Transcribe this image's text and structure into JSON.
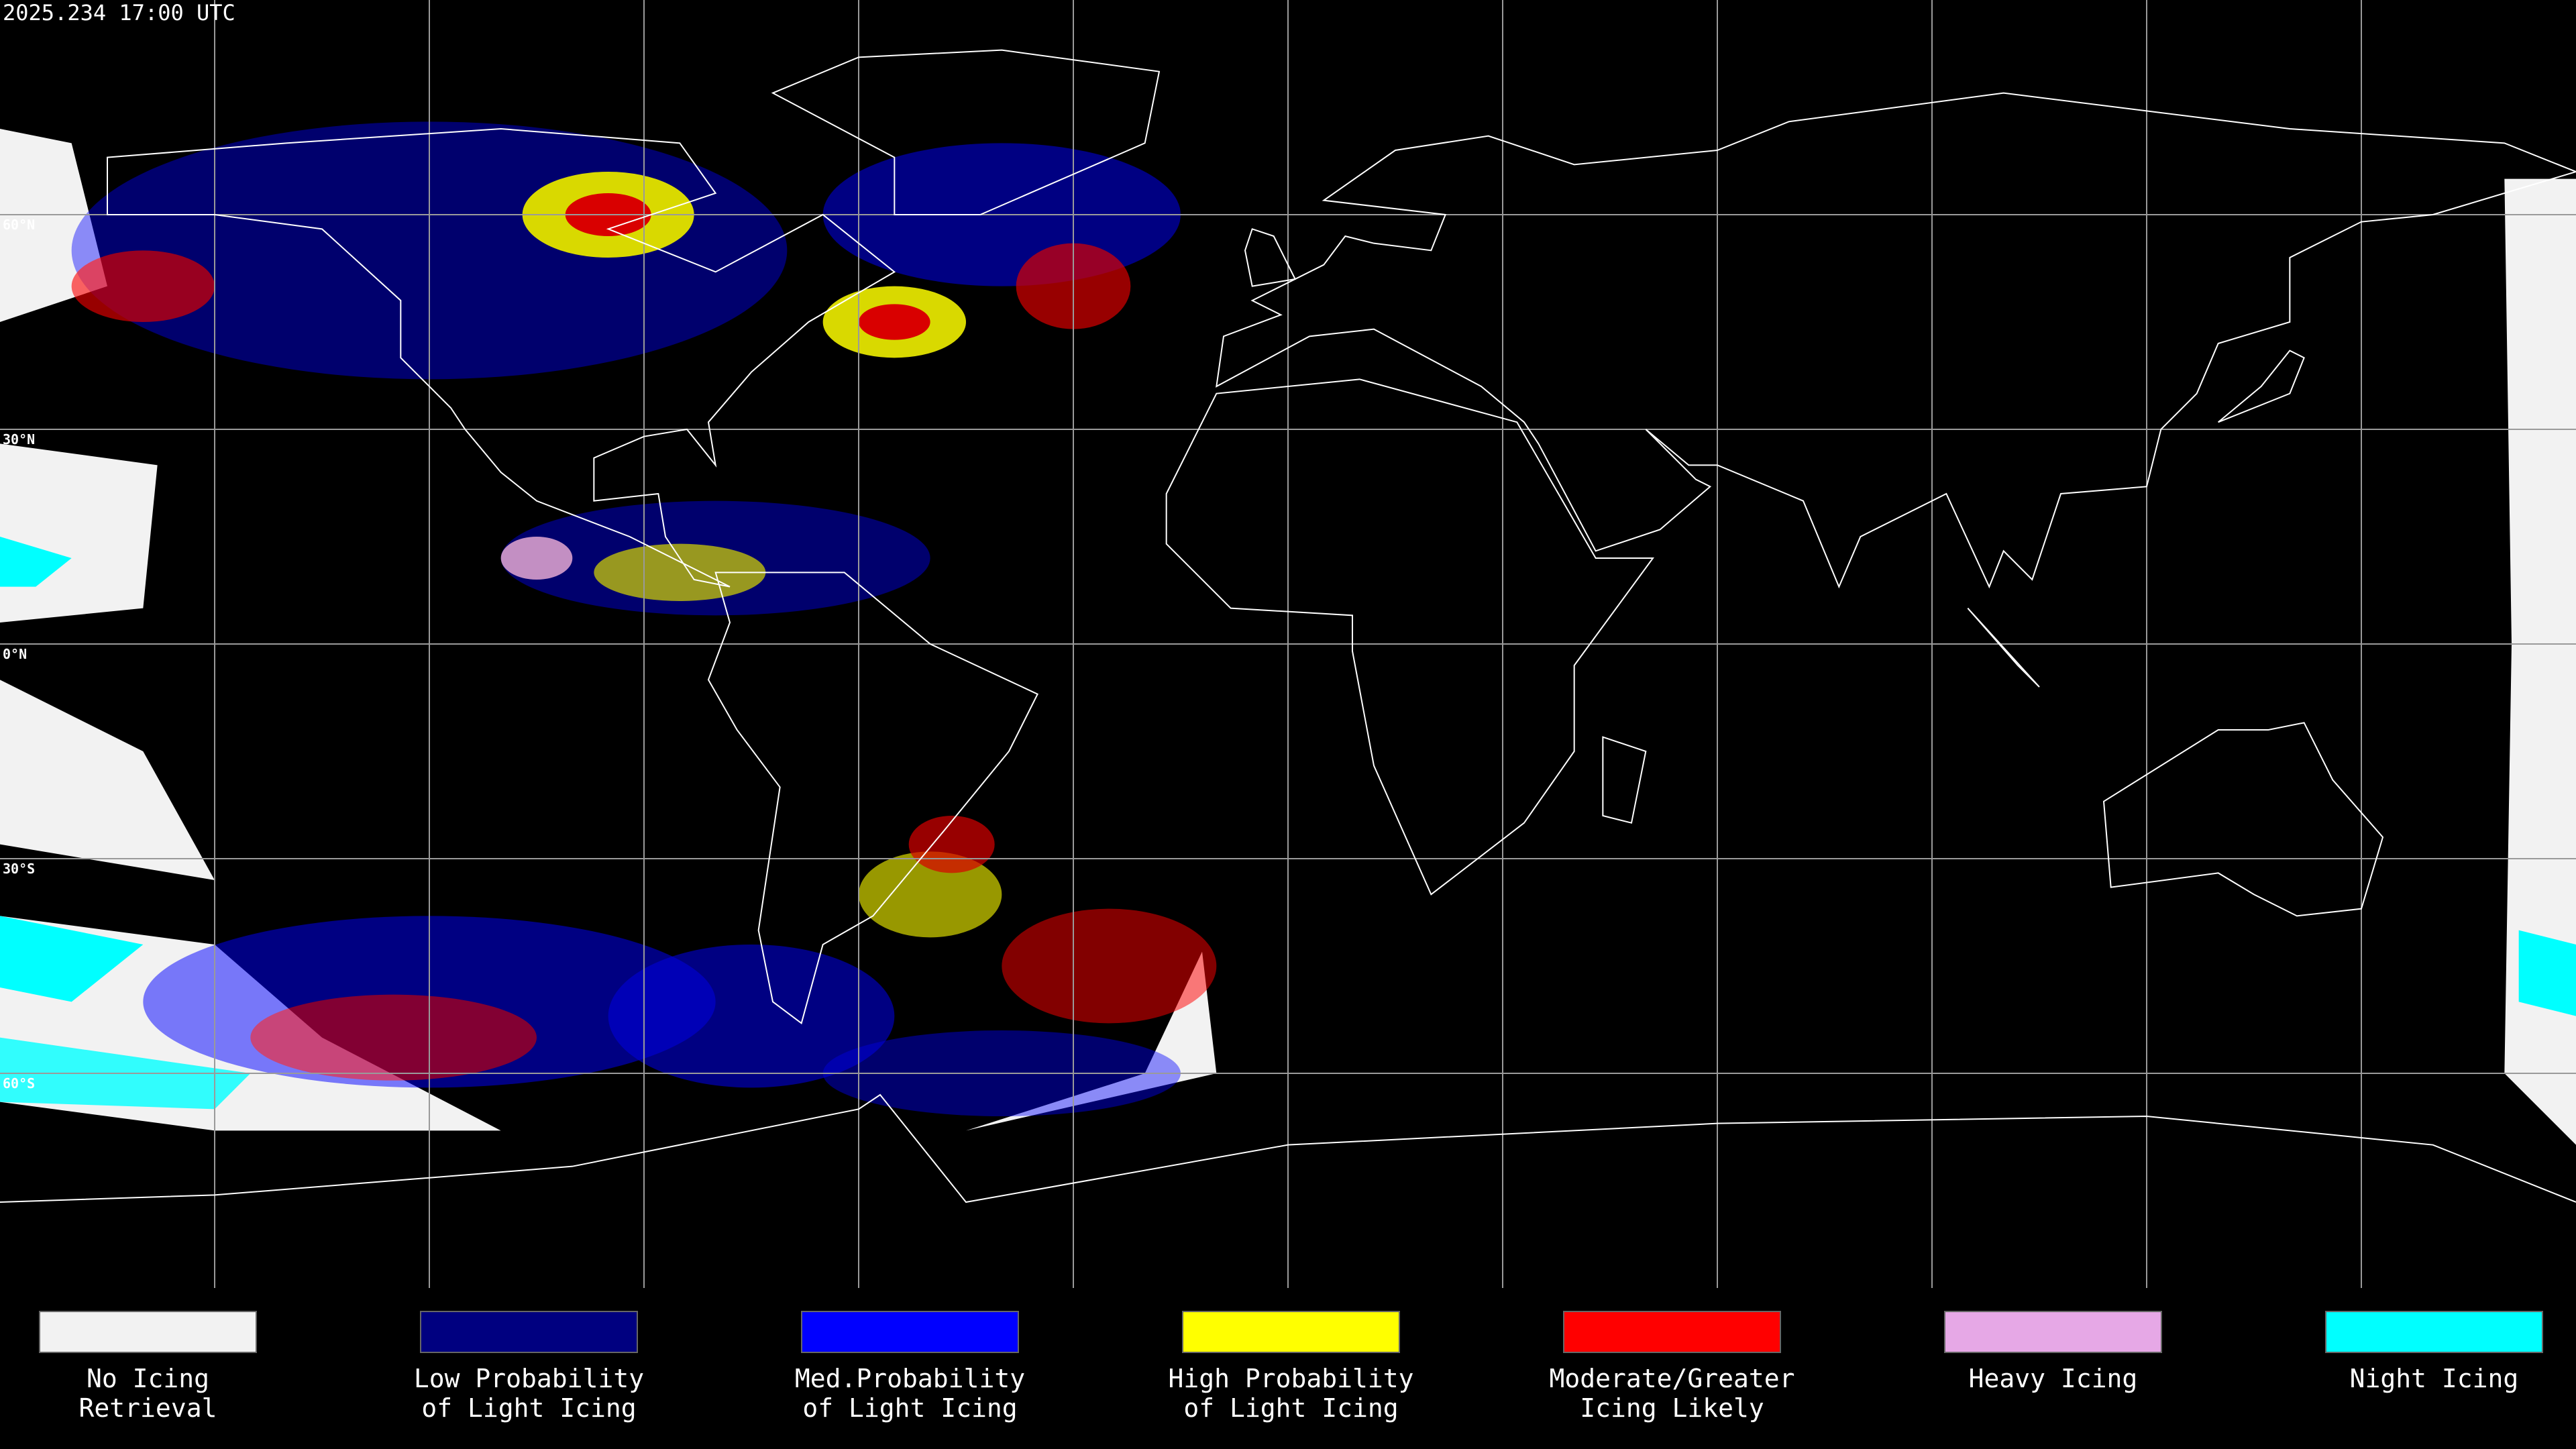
{
  "header": {
    "timestamp": "2025.234 17:00 UTC"
  },
  "latitude_labels": [
    "60°N",
    "30°N",
    "0°N",
    "30°S",
    "60°S"
  ],
  "legend": [
    {
      "lines": [
        "No Icing",
        "Retrieval"
      ],
      "color": "#f2f2f2"
    },
    {
      "lines": [
        "Low Probability",
        "of Light Icing"
      ],
      "color": "#000080"
    },
    {
      "lines": [
        "Med.Probability",
        "of Light Icing"
      ],
      "color": "#0000ff"
    },
    {
      "lines": [
        "High Probability",
        "of Light Icing"
      ],
      "color": "#ffff00"
    },
    {
      "lines": [
        "Moderate/Greater",
        "Icing Likely"
      ],
      "color": "#ff0000"
    },
    {
      "lines": [
        "Heavy Icing"
      ],
      "color": "#e6a8e6"
    },
    {
      "lines": [
        "Night Icing"
      ],
      "color": "#00ffff"
    }
  ]
}
